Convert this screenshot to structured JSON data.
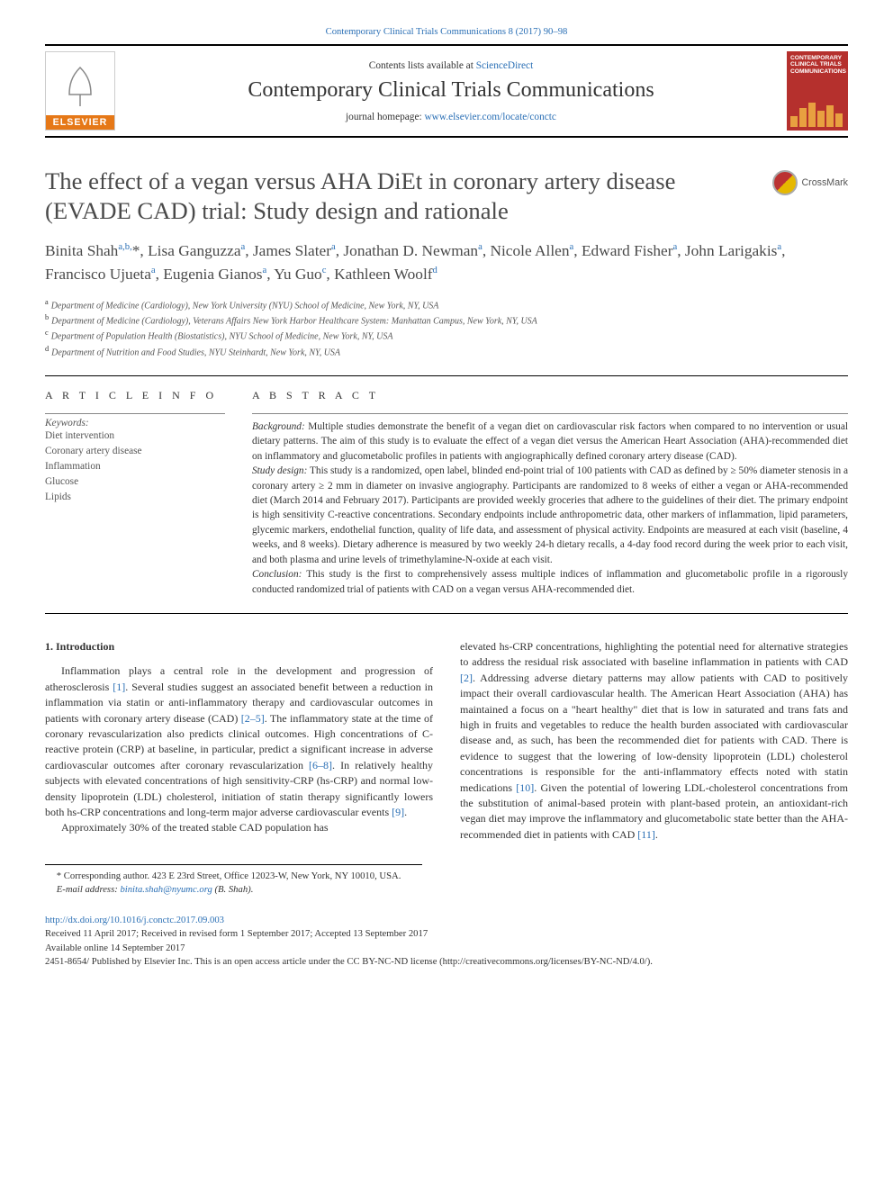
{
  "header": {
    "citation": "Contemporary Clinical Trials Communications 8 (2017) 90–98",
    "contents_prefix": "Contents lists available at ",
    "contents_link": "ScienceDirect",
    "journal_name": "Contemporary Clinical Trials Communications",
    "homepage_prefix": "journal homepage: ",
    "homepage_url": "www.elsevier.com/locate/conctc",
    "publisher_logo": "ELSEVIER",
    "cover_title": "CONTEMPORARY CLINICAL TRIALS COMMUNICATIONS"
  },
  "crossmark_label": "CrossMark",
  "title": "The effect of a vegan versus AHA DiEt in coronary artery disease (EVADE CAD) trial: Study design and rationale",
  "authors_html": "Binita Shah<sup>a,b,</sup>*, Lisa Ganguzza<sup>a</sup>, James Slater<sup>a</sup>, Jonathan D. Newman<sup>a</sup>, Nicole Allen<sup>a</sup>, Edward Fisher<sup>a</sup>, John Larigakis<sup>a</sup>, Francisco Ujueta<sup>a</sup>, Eugenia Gianos<sup>a</sup>, Yu Guo<sup>c</sup>, Kathleen Woolf<sup>d</sup>",
  "affiliations": [
    {
      "sup": "a",
      "text": "Department of Medicine (Cardiology), New York University (NYU) School of Medicine, New York, NY, USA"
    },
    {
      "sup": "b",
      "text": "Department of Medicine (Cardiology), Veterans Affairs New York Harbor Healthcare System: Manhattan Campus, New York, NY, USA"
    },
    {
      "sup": "c",
      "text": "Department of Population Health (Biostatistics), NYU School of Medicine, New York, NY, USA"
    },
    {
      "sup": "d",
      "text": "Department of Nutrition and Food Studies, NYU Steinhardt, New York, NY, USA"
    }
  ],
  "article_info": {
    "heading": "A R T I C L E  I N F O",
    "keywords_label": "Keywords:",
    "keywords": [
      "Diet intervention",
      "Coronary artery disease",
      "Inflammation",
      "Glucose",
      "Lipids"
    ]
  },
  "abstract": {
    "heading": "A B S T R A C T",
    "sections": [
      {
        "label": "Background:",
        "text": " Multiple studies demonstrate the benefit of a vegan diet on cardiovascular risk factors when compared to no intervention or usual dietary patterns. The aim of this study is to evaluate the effect of a vegan diet versus the American Heart Association (AHA)-recommended diet on inflammatory and glucometabolic profiles in patients with angiographically defined coronary artery disease (CAD)."
      },
      {
        "label": "Study design:",
        "text": " This study is a randomized, open label, blinded end-point trial of 100 patients with CAD as defined by ≥ 50% diameter stenosis in a coronary artery ≥ 2 mm in diameter on invasive angiography. Participants are randomized to 8 weeks of either a vegan or AHA-recommended diet (March 2014 and February 2017). Participants are provided weekly groceries that adhere to the guidelines of their diet. The primary endpoint is high sensitivity C-reactive concentrations. Secondary endpoints include anthropometric data, other markers of inflammation, lipid parameters, glycemic markers, endothelial function, quality of life data, and assessment of physical activity. Endpoints are measured at each visit (baseline, 4 weeks, and 8 weeks). Dietary adherence is measured by two weekly 24-h dietary recalls, a 4-day food record during the week prior to each visit, and both plasma and urine levels of trimethylamine-N-oxide at each visit."
      },
      {
        "label": "Conclusion:",
        "text": " This study is the first to comprehensively assess multiple indices of inflammation and glucometabolic profile in a rigorously conducted randomized trial of patients with CAD on a vegan versus AHA-recommended diet."
      }
    ]
  },
  "body": {
    "intro_heading": "1. Introduction",
    "col1": [
      "Inflammation plays a central role in the development and progression of atherosclerosis <a class=\"ref\" data-name=\"citation-link\" data-interactable=\"true\">[1]</a>. Several studies suggest an associated benefit between a reduction in inflammation via statin or anti-inflammatory therapy and cardiovascular outcomes in patients with coronary artery disease (CAD) <a class=\"ref\" data-name=\"citation-link\" data-interactable=\"true\">[2–5]</a>. The inflammatory state at the time of coronary revascularization also predicts clinical outcomes. High concentrations of C-reactive protein (CRP) at baseline, in particular, predict a significant increase in adverse cardiovascular outcomes after coronary revascularization <a class=\"ref\" data-name=\"citation-link\" data-interactable=\"true\">[6–8]</a>. In relatively healthy subjects with elevated concentrations of high sensitivity-CRP (hs-CRP) and normal low-density lipoprotein (LDL) cholesterol, initiation of statin therapy significantly lowers both hs-CRP concentrations and long-term major adverse cardiovascular events <a class=\"ref\" data-name=\"citation-link\" data-interactable=\"true\">[9]</a>.",
      "Approximately 30% of the treated stable CAD population has"
    ],
    "col2": [
      "elevated hs-CRP concentrations, highlighting the potential need for alternative strategies to address the residual risk associated with baseline inflammation in patients with CAD <a class=\"ref\" data-name=\"citation-link\" data-interactable=\"true\">[2]</a>. Addressing adverse dietary patterns may allow patients with CAD to positively impact their overall cardiovascular health. The American Heart Association (AHA) has maintained a focus on a \"heart healthy\" diet that is low in saturated and trans fats and high in fruits and vegetables to reduce the health burden associated with cardiovascular disease and, as such, has been the recommended diet for patients with CAD. There is evidence to suggest that the lowering of low-density lipoprotein (LDL) cholesterol concentrations is responsible for the anti-inflammatory effects noted with statin medications <a class=\"ref\" data-name=\"citation-link\" data-interactable=\"true\">[10]</a>. Given the potential of lowering LDL-cholesterol concentrations from the substitution of animal-based protein with plant-based protein, an antioxidant-rich vegan diet may improve the inflammatory and glucometabolic state better than the AHA-recommended diet in patients with CAD <a class=\"ref\" data-name=\"citation-link\" data-interactable=\"true\">[11]</a>."
    ]
  },
  "footnotes": {
    "corr": "* Corresponding author. 423 E 23rd Street, Office 12023-W, New York, NY 10010, USA.",
    "email_label": "E-mail address: ",
    "email": "binita.shah@nyumc.org",
    "email_suffix": " (B. Shah)."
  },
  "footer": {
    "doi": "http://dx.doi.org/10.1016/j.conctc.2017.09.003",
    "received": "Received 11 April 2017; Received in revised form 1 September 2017; Accepted 13 September 2017",
    "available": "Available online 14 September 2017",
    "copyright": "2451-8654/ Published by Elsevier Inc. This is an open access article under the CC BY-NC-ND license (http://creativecommons.org/licenses/BY-NC-ND/4.0/)."
  },
  "colors": {
    "link": "#2a6fb5",
    "elsevier_orange": "#e67817",
    "cover_red": "#b5302d",
    "cover_bar": "#e8a040"
  }
}
